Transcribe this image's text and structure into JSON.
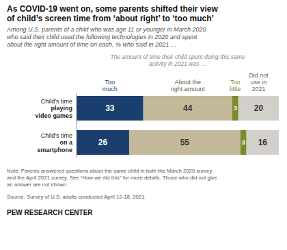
{
  "chart_data": {
    "type": "bar",
    "orientation": "horizontal",
    "stacked": true,
    "data_labels": true,
    "tick_labels": false,
    "title": "As COVID-19 went on, some parents shifted their view\nof child’s screen time from ‘about right’ to ‘too much’",
    "subtitle": "Among U.S. parents of a child who was age 11 or younger in March 2020\nwho said their child used the following technologies in 2020 and spent\nabout the right amount of time on each, % who said in 2021 …",
    "annotations": [
      "The amount of time their child spent doing this same\nactivity in 2021 was …",
      "Note: Parents answered questions about the same child in both the March 2020 survey\nand the April 2021 survey. See “How we did this” for more details. Those who did not give\nan answer are not shown.",
      "Source: Survey of U.S. adults conducted April 12-18, 2021.",
      "PEW RESEARCH CENTER"
    ],
    "categories": [
      "Child’s time\nplaying\nvideo games",
      "Child’s time\non a\nsmartphone"
    ],
    "series": [
      {
        "name": "Too\nmuch",
        "color": "#1a3f6e",
        "values": [
          33,
          26
        ]
      },
      {
        "name": "About the\nright amount",
        "color": "#c4b99a",
        "values": [
          44,
          55
        ]
      },
      {
        "name": "Too\nlittle",
        "color": "#7a8c2a",
        "values": [
          3,
          3
        ]
      },
      {
        "name": "Did not\nuse in\n2021",
        "color": "#d3d0cb",
        "values": [
          20,
          16
        ]
      }
    ],
    "xlim": [
      0,
      100
    ]
  }
}
